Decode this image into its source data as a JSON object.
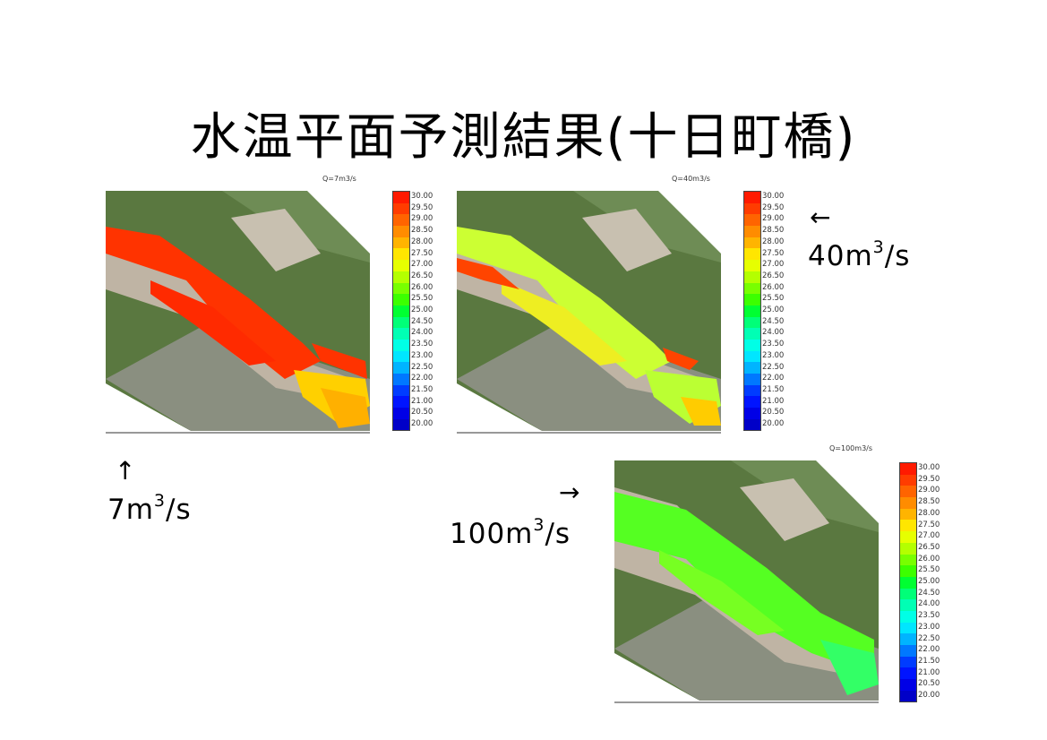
{
  "title": "水温平面予測結果(十日町橋)",
  "panels": [
    {
      "caption": "Q=7m3/s",
      "flow_prefix": "7m",
      "flow_exp": "3",
      "flow_suffix": "/s",
      "arrow": "↑"
    },
    {
      "caption": "Q=40m3/s",
      "flow_prefix": "40m",
      "flow_exp": "3",
      "flow_suffix": "/s",
      "arrow": "←"
    },
    {
      "caption": "Q=100m3/s",
      "flow_prefix": "100m",
      "flow_exp": "3",
      "flow_suffix": "/s",
      "arrow": "→"
    }
  ],
  "legend": {
    "values": [
      "30.00",
      "29.50",
      "29.00",
      "28.50",
      "28.00",
      "27.50",
      "27.00",
      "26.50",
      "26.00",
      "25.50",
      "25.00",
      "24.50",
      "24.00",
      "23.50",
      "23.00",
      "22.50",
      "22.00",
      "21.50",
      "21.00",
      "20.50",
      "20.00"
    ],
    "colors": [
      "#ff1a00",
      "#ff3c00",
      "#ff6400",
      "#ff8c00",
      "#ffb400",
      "#ffe600",
      "#e6ff00",
      "#b4ff00",
      "#78ff00",
      "#3cff00",
      "#00ff32",
      "#00ff78",
      "#00ffb4",
      "#00ffe6",
      "#00e6ff",
      "#00b4ff",
      "#0078ff",
      "#003cff",
      "#0014ff",
      "#0000e6",
      "#0000c8"
    ]
  },
  "colors": {
    "hot": "#ff3200",
    "warm": "#ffd000",
    "mild": "#aaff22",
    "cool": "#44ff44"
  }
}
